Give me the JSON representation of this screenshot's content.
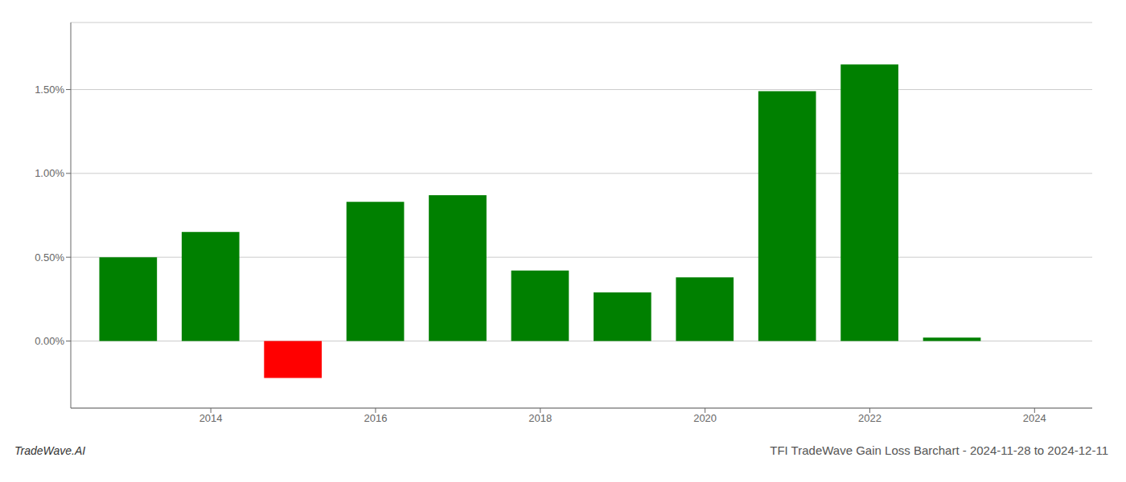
{
  "chart_data": {
    "type": "bar",
    "title": "TFI TradeWave Gain Loss Barchart - 2024-11-28 to 2024-12-11",
    "annotations": [
      "TradeWave.AI"
    ],
    "x": [
      2013,
      2014,
      2015,
      2016,
      2017,
      2018,
      2019,
      2020,
      2021,
      2022,
      2023
    ],
    "values": [
      0.005,
      0.0065,
      -0.0022,
      0.0083,
      0.0087,
      0.0042,
      0.0029,
      0.0038,
      0.0149,
      0.0165,
      0.0002
    ],
    "colors": [
      "#008000",
      "#008000",
      "#ff0000",
      "#008000",
      "#008000",
      "#008000",
      "#008000",
      "#008000",
      "#008000",
      "#008000",
      "#008000"
    ],
    "xlim": [
      2012.3,
      2024.7
    ],
    "xticks": [
      2014,
      2016,
      2018,
      2020,
      2022,
      2024
    ],
    "ylim": [
      -0.004,
      0.019
    ],
    "yticks": [
      {
        "value": 0,
        "label": "0.00%"
      },
      {
        "value": 0.005,
        "label": "0.50%"
      },
      {
        "value": 0.01,
        "label": "1.00%"
      },
      {
        "value": 0.015,
        "label": "1.50%"
      }
    ],
    "grid": true
  }
}
